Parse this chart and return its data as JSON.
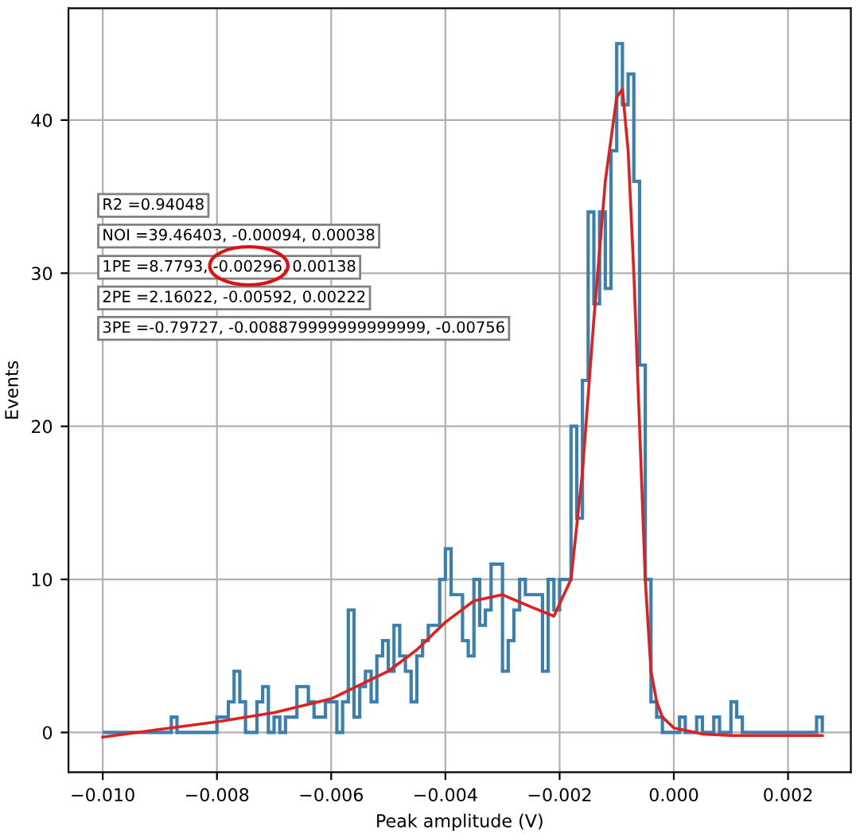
{
  "chart_data": {
    "type": "histogram",
    "xlabel": "Peak amplitude (V)",
    "ylabel": "Events",
    "xlim": [
      -0.0106,
      0.0031
    ],
    "ylim": [
      -2.6,
      47.3
    ],
    "xticks": [
      {
        "value": -0.01,
        "label": "−0.010"
      },
      {
        "value": -0.008,
        "label": "−0.008"
      },
      {
        "value": -0.006,
        "label": "−0.006"
      },
      {
        "value": -0.004,
        "label": "−0.004"
      },
      {
        "value": -0.002,
        "label": "−0.002"
      },
      {
        "value": 0.0,
        "label": "0.000"
      },
      {
        "value": 0.002,
        "label": "0.002"
      }
    ],
    "yticks": [
      0,
      10,
      20,
      30,
      40
    ],
    "grid": true,
    "annotations": [
      "R2 =0.94048",
      "NOI =39.46403, -0.00094, 0.00038",
      "1PE =8.7793, -0.00296, 0.00138",
      "2PE =2.16022, -0.00592, 0.00222",
      "3PE =-0.79727, -0.008879999999999999, -0.00756"
    ],
    "series": [
      {
        "type": "histogram",
        "color": "#3a7fae",
        "bins": [
          -0.01,
          -0.0099,
          -0.0098,
          -0.0097,
          -0.0096,
          -0.0095,
          -0.0094,
          -0.0093,
          -0.0092,
          -0.0091,
          -0.009,
          -0.0089,
          -0.0088,
          -0.0087,
          -0.0086,
          -0.0085,
          -0.0084,
          -0.0083,
          -0.0082,
          -0.0081,
          -0.008,
          -0.0079,
          -0.0078,
          -0.0077,
          -0.0076,
          -0.0075,
          -0.0074,
          -0.0073,
          -0.0072,
          -0.0071,
          -0.007,
          -0.0069,
          -0.0068,
          -0.0067,
          -0.0066,
          -0.0065,
          -0.0064,
          -0.0063,
          -0.0062,
          -0.0061,
          -0.006,
          -0.0059,
          -0.0058,
          -0.0057,
          -0.0056,
          -0.0055,
          -0.0054,
          -0.0053,
          -0.0052,
          -0.0051,
          -0.005,
          -0.0049,
          -0.0048,
          -0.0047,
          -0.0046,
          -0.0045,
          -0.0044,
          -0.0043,
          -0.0042,
          -0.0041,
          -0.004,
          -0.0039,
          -0.0038,
          -0.0037,
          -0.0036,
          -0.0035,
          -0.0034,
          -0.0033,
          -0.0032,
          -0.0031,
          -0.003,
          -0.0029,
          -0.0028,
          -0.0027,
          -0.0026,
          -0.0025,
          -0.0024,
          -0.0023,
          -0.0022,
          -0.0021,
          -0.002,
          -0.0019,
          -0.0018,
          -0.0017,
          -0.0016,
          -0.0015,
          -0.0014,
          -0.0013,
          -0.0012,
          -0.0011,
          -0.001,
          -0.0009,
          -0.0008,
          -0.0007,
          -0.0006,
          -0.0005,
          -0.0004,
          -0.0003,
          -0.0002,
          -0.0001,
          0.0,
          0.0001,
          0.0002,
          0.0003,
          0.0004,
          0.0005,
          0.0006,
          0.0007,
          0.0008,
          0.0009,
          0.001,
          0.0011,
          0.0012,
          0.0013,
          0.0014,
          0.0015,
          0.0016,
          0.0017,
          0.0018,
          0.0019,
          0.002,
          0.0021,
          0.0022,
          0.0023,
          0.0024,
          0.0025,
          0.0026
        ],
        "values": [
          0,
          0,
          0,
          0,
          0,
          0,
          0,
          0,
          0,
          0,
          0,
          0,
          1,
          0,
          0,
          0,
          0,
          0,
          0,
          0,
          1,
          1,
          2,
          4,
          2,
          0,
          0,
          2,
          3,
          0,
          1,
          0,
          1,
          1,
          3,
          3,
          2,
          1,
          1,
          2,
          2,
          0,
          2,
          8,
          1,
          3,
          4,
          2,
          5,
          6,
          4,
          7,
          5,
          4,
          2,
          5,
          6,
          7,
          7,
          10,
          12,
          9,
          9,
          6,
          5,
          10,
          7,
          8,
          11,
          11,
          4,
          6,
          8,
          10,
          9,
          9,
          9,
          4,
          10,
          8,
          10,
          10,
          20,
          14,
          23,
          34,
          28,
          34,
          29,
          38,
          45,
          41,
          43,
          36,
          24,
          10,
          2,
          1,
          0,
          0,
          0,
          1,
          0,
          0,
          1,
          0,
          0,
          1,
          0,
          0,
          2,
          1,
          0,
          0,
          0,
          0,
          0,
          0,
          0,
          0,
          0,
          0,
          0,
          0,
          0,
          1
        ]
      },
      {
        "type": "line",
        "color": "#e0201e",
        "x": [
          -0.01,
          -0.009,
          -0.008,
          -0.007,
          -0.006,
          -0.005,
          -0.0045,
          -0.004,
          -0.0035,
          -0.003,
          -0.0025,
          -0.0021,
          -0.0018,
          -0.0016,
          -0.0014,
          -0.0012,
          -0.001,
          -0.0009,
          -0.0008,
          -0.0007,
          -0.0006,
          -0.0005,
          -0.0004,
          -0.0003,
          -0.0002,
          0.0,
          0.0005,
          0.001,
          0.0026
        ],
        "values": [
          -0.3,
          0.2,
          0.7,
          1.3,
          2.2,
          4,
          5.4,
          7.2,
          8.6,
          9,
          8.2,
          7.6,
          10,
          17,
          27,
          36,
          41.5,
          42,
          38,
          30,
          20,
          10,
          4,
          2,
          1,
          0.3,
          -0.1,
          -0.2,
          -0.2
        ]
      }
    ]
  }
}
